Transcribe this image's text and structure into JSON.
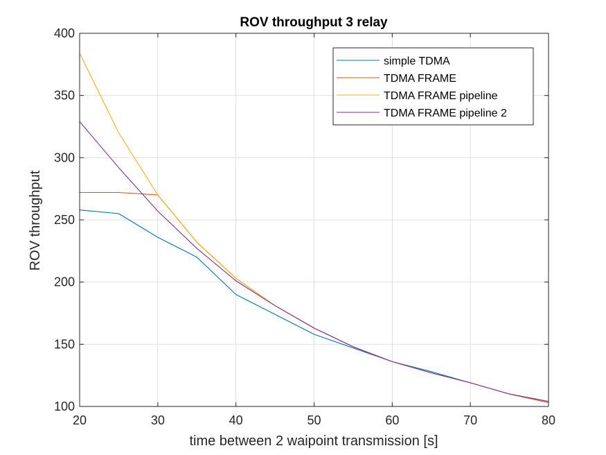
{
  "chart_data": {
    "type": "line",
    "title": "ROV throughput 3 relay",
    "xlabel": "time between 2 waipoint transmission [s]",
    "ylabel": "ROV throughput",
    "xlim": [
      20,
      80
    ],
    "ylim": [
      100,
      400
    ],
    "x_ticks": [
      "20",
      "30",
      "40",
      "50",
      "60",
      "70",
      "80"
    ],
    "y_ticks": [
      "100",
      "150",
      "200",
      "250",
      "300",
      "350",
      "400"
    ],
    "grid": true,
    "legend_position": "top-right",
    "x": [
      20,
      25,
      30,
      35,
      40,
      45,
      50,
      55,
      60,
      65,
      70,
      75,
      80
    ],
    "series": [
      {
        "name": "simple TDMA",
        "color": "#0072BD",
        "values": [
          258,
          255,
          236,
          220,
          190,
          174,
          158,
          147,
          136,
          128,
          119,
          110,
          104
        ]
      },
      {
        "name": "TDMA FRAME",
        "color": "#D95319",
        "values": [
          272,
          272,
          270,
          232,
          203,
          181,
          163,
          148,
          136,
          127,
          119,
          110,
          103
        ]
      },
      {
        "name": "TDMA FRAME pipeline",
        "color": "#EDB120",
        "values": [
          384,
          320,
          270,
          232,
          203,
          181,
          163,
          148,
          136,
          127,
          119,
          110,
          104
        ]
      },
      {
        "name": "TDMA FRAME pipeline 2",
        "color": "#7E2F8E",
        "values": [
          329,
          292,
          257,
          227,
          201,
          181,
          163,
          148,
          136,
          127,
          119,
          110,
          104
        ]
      }
    ]
  }
}
